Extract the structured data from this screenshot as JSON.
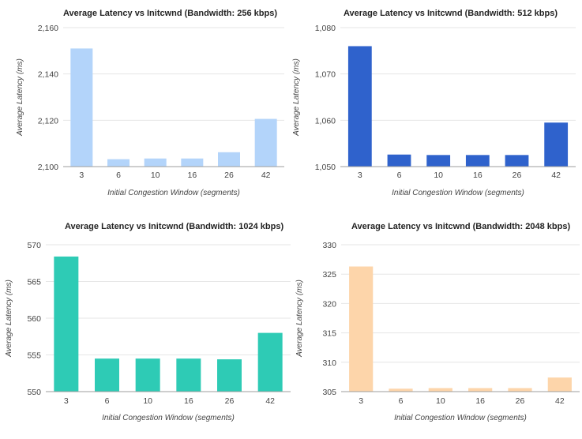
{
  "chart_data": [
    {
      "type": "bar",
      "title": "Average Latency vs Initcwnd (Bandwidth: 256 kbps)",
      "xlabel": "Initial Congestion Window (segments)",
      "ylabel": "Average Latency (ms)",
      "categories": [
        "3",
        "6",
        "10",
        "16",
        "26",
        "42"
      ],
      "values": [
        2151,
        2103.2,
        2103.5,
        2103.5,
        2106.2,
        2120.6
      ],
      "ylim": [
        2100,
        2160
      ],
      "yticks": [
        2100,
        2120,
        2140,
        2160
      ],
      "ytick_labels": [
        "2,100",
        "2,120",
        "2,140",
        "2,160"
      ],
      "color": "#b3d4fa",
      "grid": true
    },
    {
      "type": "bar",
      "title": "Average Latency vs Initcwnd (Bandwidth: 512 kbps)",
      "xlabel": "Initial Congestion Window (segments)",
      "ylabel": "Average Latency (ms)",
      "categories": [
        "3",
        "6",
        "10",
        "16",
        "26",
        "42"
      ],
      "values": [
        1076,
        1052.6,
        1052.5,
        1052.5,
        1052.5,
        1059.5
      ],
      "ylim": [
        1050,
        1080
      ],
      "yticks": [
        1050,
        1060,
        1070,
        1080
      ],
      "ytick_labels": [
        "1,050",
        "1,060",
        "1,070",
        "1,080"
      ],
      "color": "#2f62cc",
      "grid": true
    },
    {
      "type": "bar",
      "title": "Average Latency vs Initcwnd (Bandwidth: 1024 kbps)",
      "xlabel": "Initial Congestion Window (segments)",
      "ylabel": "Average Latency (ms)",
      "categories": [
        "3",
        "6",
        "10",
        "16",
        "26",
        "42"
      ],
      "values": [
        568.4,
        554.5,
        554.5,
        554.5,
        554.4,
        558
      ],
      "ylim": [
        550,
        570
      ],
      "yticks": [
        550,
        555,
        560,
        565,
        570
      ],
      "ytick_labels": [
        "550",
        "555",
        "560",
        "565",
        "570"
      ],
      "color": "#2ecbb5",
      "grid": true
    },
    {
      "type": "bar",
      "title": "Average Latency vs Initcwnd (Bandwidth: 2048 kbps)",
      "xlabel": "Initial Congestion Window (segments)",
      "ylabel": "Average Latency (ms)",
      "categories": [
        "3",
        "6",
        "10",
        "16",
        "26",
        "42"
      ],
      "values": [
        326.3,
        305.5,
        305.6,
        305.6,
        305.6,
        307.4
      ],
      "ylim": [
        305,
        330
      ],
      "yticks": [
        305,
        310,
        315,
        320,
        325,
        330
      ],
      "ytick_labels": [
        "305",
        "310",
        "315",
        "320",
        "325",
        "330"
      ],
      "color": "#fdd5aa",
      "grid": true
    }
  ]
}
